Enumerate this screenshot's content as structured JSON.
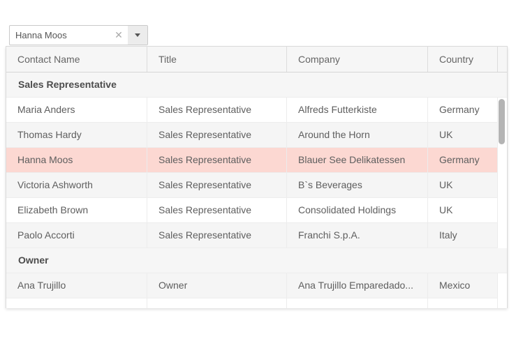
{
  "combobox": {
    "value": "Hanna Moos",
    "clear_icon": "✕"
  },
  "grid": {
    "columns": [
      "Contact Name",
      "Title",
      "Company",
      "Country"
    ],
    "groups": [
      {
        "label": "Sales Representative",
        "rows": [
          {
            "contact": "Maria Anders",
            "title": "Sales Representative",
            "company": "Alfreds Futterkiste",
            "country": "Germany",
            "alt": false,
            "selected": false
          },
          {
            "contact": "Thomas Hardy",
            "title": "Sales Representative",
            "company": "Around the Horn",
            "country": "UK",
            "alt": true,
            "selected": false
          },
          {
            "contact": "Hanna Moos",
            "title": "Sales Representative",
            "company": "Blauer See Delikatessen",
            "country": "Germany",
            "alt": false,
            "selected": true
          },
          {
            "contact": "Victoria Ashworth",
            "title": "Sales Representative",
            "company": "B`s Beverages",
            "country": "UK",
            "alt": true,
            "selected": false
          },
          {
            "contact": "Elizabeth Brown",
            "title": "Sales Representative",
            "company": "Consolidated Holdings",
            "country": "UK",
            "alt": false,
            "selected": false
          },
          {
            "contact": "Paolo Accorti",
            "title": "Sales Representative",
            "company": "Franchi S.p.A.",
            "country": "Italy",
            "alt": true,
            "selected": false
          }
        ]
      },
      {
        "label": "Owner",
        "rows": [
          {
            "contact": "Ana Trujillo",
            "title": "Owner",
            "company": "Ana Trujillo Emparedado...",
            "country": "Mexico",
            "alt": true,
            "selected": false
          }
        ]
      }
    ],
    "colors": {
      "selected_row": "#fcd8d2",
      "alt_row": "#f5f5f5",
      "group_row_bg": "#f6f6f6",
      "header_bg": "#f6f6f6",
      "scrollbar_thumb": "#b4b4b4"
    }
  }
}
